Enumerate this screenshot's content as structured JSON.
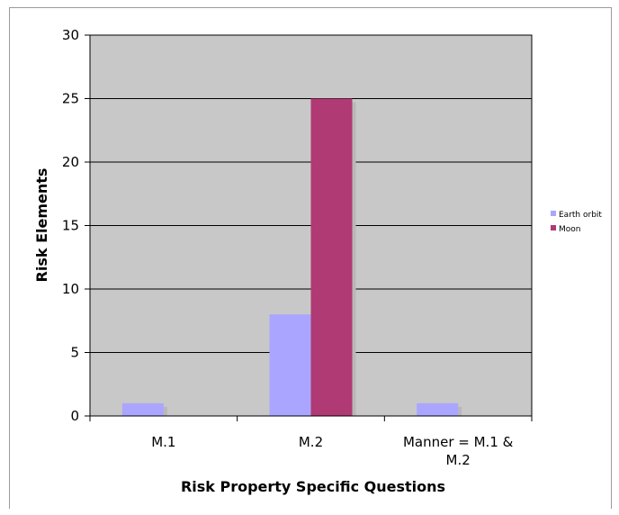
{
  "chart_data": {
    "type": "bar",
    "categories": [
      "M.1",
      "M.2",
      "Manner = M.1 & M.2"
    ],
    "category_label_lines": [
      [
        "M.1"
      ],
      [
        "M.2"
      ],
      [
        "Manner = M.1 &",
        "M.2"
      ]
    ],
    "series": [
      {
        "name": "Earth orbit",
        "values": [
          1,
          8,
          1
        ],
        "color": "#aaa6ff"
      },
      {
        "name": "Moon",
        "values": [
          0,
          25,
          0
        ],
        "color": "#b03a74"
      }
    ],
    "title": "",
    "xlabel": "Risk Property Specific Questions",
    "ylabel": "Risk Elements",
    "ylim": [
      0,
      30
    ],
    "yticks": [
      0,
      5,
      10,
      15,
      20,
      25,
      30
    ],
    "grid": true,
    "legend_position": "right",
    "plot_background": "#c8c8c8",
    "shadow_color": "#b8b8b8"
  }
}
